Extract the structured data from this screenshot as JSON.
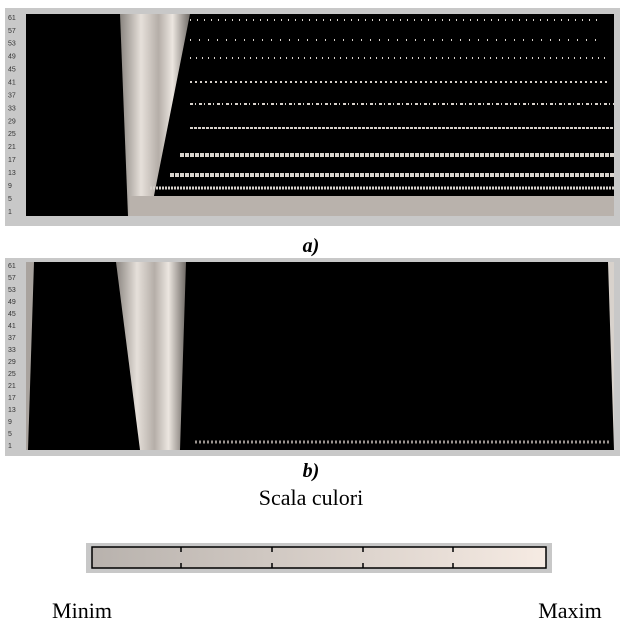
{
  "panels": [
    {
      "label": "a)",
      "y_labels": [
        "61",
        "57",
        "53",
        "49",
        "45",
        "41",
        "37",
        "33",
        "29",
        "25",
        "21",
        "17",
        "13",
        "9",
        "5",
        "1"
      ]
    },
    {
      "label": "b)",
      "y_labels": [
        "61",
        "57",
        "53",
        "49",
        "45",
        "41",
        "37",
        "33",
        "29",
        "25",
        "21",
        "17",
        "13",
        "9",
        "5",
        "1"
      ]
    }
  ],
  "color_scale": {
    "title": "Scala culori",
    "min_label": "Minim",
    "max_label": "Maxim"
  }
}
